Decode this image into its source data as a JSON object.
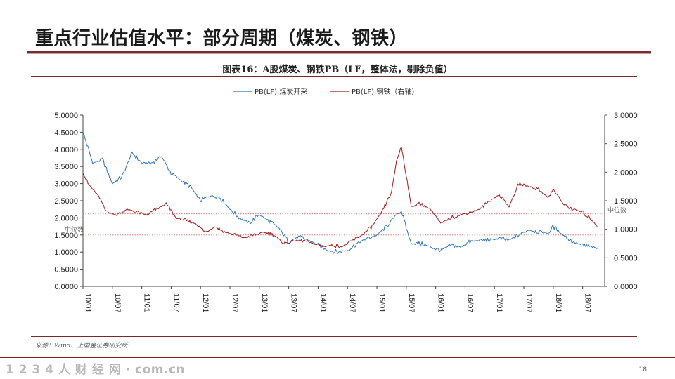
{
  "slide": {
    "title": "重点行业估值水平：部分周期（煤炭、钢铁）",
    "page_number": "18",
    "watermark": "1 2 3 4 人 财 经 网 · com.cn"
  },
  "figure": {
    "caption": "图表16：A股煤炭、钢铁PB（LF，整体法，剔除负值）",
    "source": "来源：Wind、上国金证券研究所"
  },
  "colors": {
    "coal": "#2e74b5",
    "steel": "#9b1c1c",
    "accent": "#7a2a2a",
    "median_line": "#d06a6a"
  },
  "chart_data": {
    "type": "line",
    "x_tick_labels": [
      "10/01",
      "10/07",
      "11/01",
      "11/07",
      "12/01",
      "12/07",
      "13/01",
      "13/07",
      "14/01",
      "14/07",
      "15/01",
      "15/07",
      "16/01",
      "16/07",
      "17/01",
      "17/07",
      "18/01",
      "18/07"
    ],
    "y_left": {
      "ticks": [
        "0.0000",
        "0.5000",
        "1.0000",
        "1.5000",
        "2.0000",
        "2.5000",
        "3.0000",
        "3.5000",
        "4.0000",
        "4.5000",
        "5.0000"
      ],
      "range": [
        0,
        5
      ]
    },
    "y_right": {
      "ticks": [
        "0.0000",
        "0.5000",
        "1.0000",
        "1.5000",
        "2.0000",
        "2.5000",
        "3.0000"
      ],
      "range": [
        0,
        3
      ]
    },
    "legend": {
      "position": "top-center"
    },
    "series": [
      {
        "name": "PB(LF):煤炭开采",
        "axis": "left",
        "points": [
          [
            "2010-01",
            4.5
          ],
          [
            "2010-03",
            3.6
          ],
          [
            "2010-05",
            3.7
          ],
          [
            "2010-07",
            3.0
          ],
          [
            "2010-09",
            3.2
          ],
          [
            "2010-11",
            3.9
          ],
          [
            "2011-01",
            3.6
          ],
          [
            "2011-03",
            3.6
          ],
          [
            "2011-05",
            3.8
          ],
          [
            "2011-07",
            3.3
          ],
          [
            "2011-09",
            3.1
          ],
          [
            "2011-11",
            2.9
          ],
          [
            "2012-01",
            2.5
          ],
          [
            "2012-03",
            2.65
          ],
          [
            "2012-05",
            2.6
          ],
          [
            "2012-07",
            2.25
          ],
          [
            "2012-09",
            2.0
          ],
          [
            "2012-11",
            1.85
          ],
          [
            "2013-01",
            2.1
          ],
          [
            "2013-03",
            1.9
          ],
          [
            "2013-05",
            1.7
          ],
          [
            "2013-07",
            1.3
          ],
          [
            "2013-09",
            1.45
          ],
          [
            "2013-11",
            1.35
          ],
          [
            "2014-01",
            1.2
          ],
          [
            "2014-03",
            1.05
          ],
          [
            "2014-05",
            1.0
          ],
          [
            "2014-07",
            1.05
          ],
          [
            "2014-09",
            1.25
          ],
          [
            "2014-11",
            1.4
          ],
          [
            "2015-01",
            1.5
          ],
          [
            "2015-03",
            1.75
          ],
          [
            "2015-05",
            2.1
          ],
          [
            "2015-06",
            2.2
          ],
          [
            "2015-07",
            1.7
          ],
          [
            "2015-08",
            1.25
          ],
          [
            "2015-10",
            1.25
          ],
          [
            "2015-12",
            1.15
          ],
          [
            "2016-02",
            1.05
          ],
          [
            "2016-04",
            1.2
          ],
          [
            "2016-06",
            1.15
          ],
          [
            "2016-08",
            1.3
          ],
          [
            "2016-10",
            1.35
          ],
          [
            "2016-12",
            1.35
          ],
          [
            "2017-02",
            1.4
          ],
          [
            "2017-04",
            1.35
          ],
          [
            "2017-06",
            1.5
          ],
          [
            "2017-08",
            1.65
          ],
          [
            "2017-10",
            1.6
          ],
          [
            "2017-12",
            1.55
          ],
          [
            "2018-01",
            1.75
          ],
          [
            "2018-03",
            1.5
          ],
          [
            "2018-05",
            1.3
          ],
          [
            "2018-07",
            1.2
          ],
          [
            "2018-09",
            1.15
          ],
          [
            "2018-10",
            1.1
          ]
        ]
      },
      {
        "name": "PB(LF):钢铁（右轴）",
        "axis": "right",
        "points": [
          [
            "2010-01",
            2.0
          ],
          [
            "2010-02",
            1.8
          ],
          [
            "2010-04",
            1.6
          ],
          [
            "2010-06",
            1.3
          ],
          [
            "2010-08",
            1.25
          ],
          [
            "2010-10",
            1.35
          ],
          [
            "2010-12",
            1.3
          ],
          [
            "2011-02",
            1.25
          ],
          [
            "2011-04",
            1.35
          ],
          [
            "2011-06",
            1.45
          ],
          [
            "2011-08",
            1.2
          ],
          [
            "2011-10",
            1.15
          ],
          [
            "2011-12",
            1.1
          ],
          [
            "2012-02",
            0.95
          ],
          [
            "2012-04",
            1.05
          ],
          [
            "2012-06",
            0.95
          ],
          [
            "2012-08",
            0.9
          ],
          [
            "2012-10",
            0.85
          ],
          [
            "2012-12",
            0.9
          ],
          [
            "2013-02",
            0.95
          ],
          [
            "2013-04",
            0.9
          ],
          [
            "2013-06",
            0.75
          ],
          [
            "2013-08",
            0.8
          ],
          [
            "2013-10",
            0.8
          ],
          [
            "2013-12",
            0.75
          ],
          [
            "2014-02",
            0.7
          ],
          [
            "2014-04",
            0.72
          ],
          [
            "2014-06",
            0.7
          ],
          [
            "2014-08",
            0.8
          ],
          [
            "2014-10",
            0.9
          ],
          [
            "2014-12",
            1.05
          ],
          [
            "2015-02",
            1.3
          ],
          [
            "2015-04",
            1.65
          ],
          [
            "2015-05",
            2.2
          ],
          [
            "2015-06",
            2.45
          ],
          [
            "2015-07",
            1.95
          ],
          [
            "2015-08",
            1.4
          ],
          [
            "2015-10",
            1.45
          ],
          [
            "2015-12",
            1.35
          ],
          [
            "2016-02",
            1.1
          ],
          [
            "2016-04",
            1.2
          ],
          [
            "2016-06",
            1.25
          ],
          [
            "2016-08",
            1.3
          ],
          [
            "2016-10",
            1.35
          ],
          [
            "2016-12",
            1.5
          ],
          [
            "2017-02",
            1.6
          ],
          [
            "2017-04",
            1.4
          ],
          [
            "2017-06",
            1.8
          ],
          [
            "2017-08",
            1.75
          ],
          [
            "2017-10",
            1.7
          ],
          [
            "2017-12",
            1.55
          ],
          [
            "2018-01",
            1.7
          ],
          [
            "2018-03",
            1.45
          ],
          [
            "2018-05",
            1.35
          ],
          [
            "2018-07",
            1.3
          ],
          [
            "2018-09",
            1.15
          ],
          [
            "2018-10",
            1.05
          ]
        ]
      }
    ],
    "reference_lines": [
      {
        "label": "中位数",
        "axis": "left",
        "value": 1.5
      },
      {
        "label": "中位数",
        "axis": "right",
        "value": 1.27
      }
    ]
  }
}
